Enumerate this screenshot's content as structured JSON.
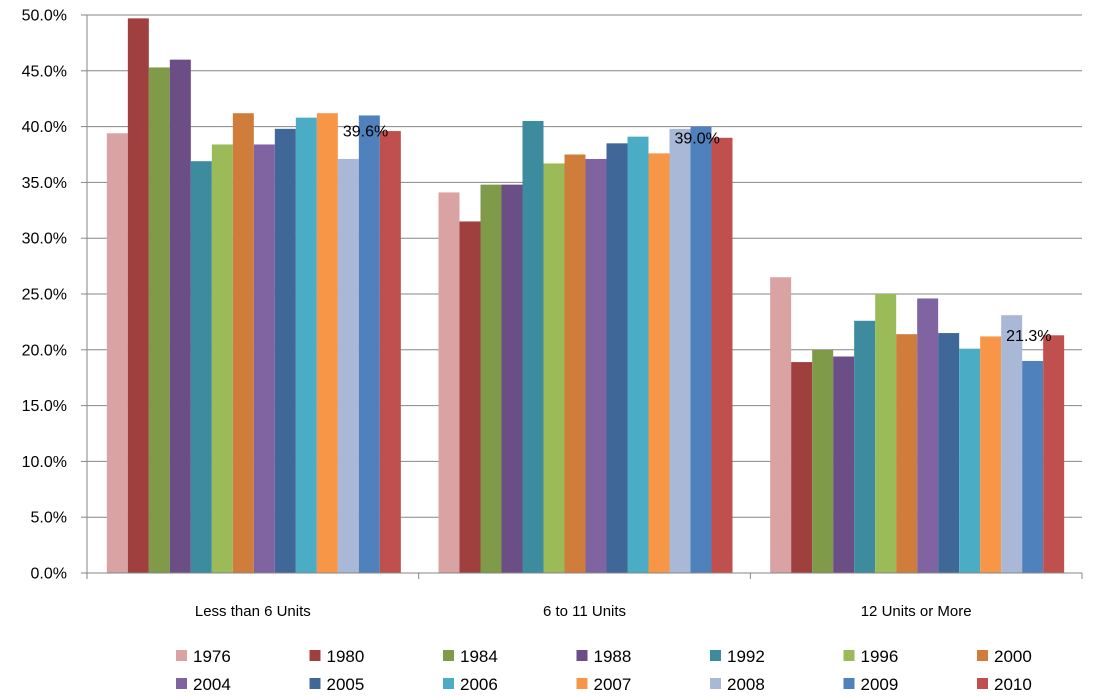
{
  "chart_data": {
    "type": "bar",
    "categories": [
      "Less than 6 Units",
      "6 to 11 Units",
      "12 Units or More"
    ],
    "ylim": [
      0,
      50
    ],
    "yticks": [
      0,
      5,
      10,
      15,
      20,
      25,
      30,
      35,
      40,
      45,
      50
    ],
    "ytick_labels": [
      "0.0%",
      "5.0%",
      "10.0%",
      "15.0%",
      "20.0%",
      "25.0%",
      "30.0%",
      "35.0%",
      "40.0%",
      "45.0%",
      "50.0%"
    ],
    "grid": true,
    "legend_position": "bottom",
    "series": [
      {
        "name": "1976",
        "color": "#D9A3A3",
        "values": [
          39.4,
          34.1,
          26.5
        ]
      },
      {
        "name": "1980",
        "color": "#A0403E",
        "values": [
          49.7,
          31.5,
          18.9
        ]
      },
      {
        "name": "1984",
        "color": "#7F9A48",
        "values": [
          45.3,
          34.8,
          20.0
        ]
      },
      {
        "name": "1988",
        "color": "#6A4E85",
        "values": [
          46.0,
          34.8,
          19.4
        ]
      },
      {
        "name": "1992",
        "color": "#3C8B9E",
        "values": [
          36.9,
          40.5,
          22.6
        ]
      },
      {
        "name": "1996",
        "color": "#9BBB59",
        "values": [
          38.4,
          36.7,
          25.0
        ]
      },
      {
        "name": "2000",
        "color": "#D07D3C",
        "values": [
          41.2,
          37.5,
          21.4
        ]
      },
      {
        "name": "2004",
        "color": "#8064A2",
        "values": [
          38.4,
          37.1,
          24.6
        ]
      },
      {
        "name": "2005",
        "color": "#3F6797",
        "values": [
          39.8,
          38.5,
          21.5
        ]
      },
      {
        "name": "2006",
        "color": "#4BACC6",
        "values": [
          40.8,
          39.1,
          20.1
        ]
      },
      {
        "name": "2007",
        "color": "#F79646",
        "values": [
          41.2,
          37.6,
          21.2
        ]
      },
      {
        "name": "2008",
        "color": "#A9B8D6",
        "values": [
          37.1,
          39.8,
          23.1
        ]
      },
      {
        "name": "2009",
        "color": "#4F81BD",
        "values": [
          41.0,
          40.0,
          19.0
        ]
      },
      {
        "name": "2010",
        "color": "#C0504D",
        "values": [
          39.6,
          39.0,
          21.3
        ]
      }
    ],
    "data_labels": [
      "39.6%",
      "39.0%",
      "21.3%"
    ]
  }
}
